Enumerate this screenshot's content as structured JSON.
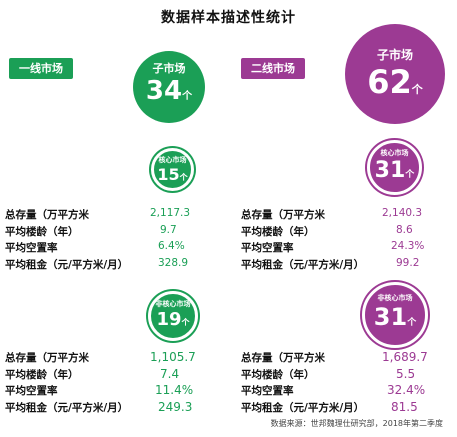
{
  "title": "数据样本描述性统计",
  "colors": {
    "green": "#1b9f56",
    "purple": "#9c3a93"
  },
  "left": {
    "tag": "一线市场",
    "main": {
      "label": "子市场",
      "number": "34",
      "unit": "个"
    },
    "core": {
      "label": "核心市场",
      "number": "15",
      "unit": "个"
    },
    "noncore": {
      "label": "非核心市场",
      "number": "19",
      "unit": "个"
    },
    "core_stats": [
      {
        "label": "总存量（万平方米",
        "value": "2,117.3"
      },
      {
        "label": "平均楼龄（年）",
        "value": "9.7"
      },
      {
        "label": "平均空置率",
        "value": "6.4%"
      },
      {
        "label": "平均租金（元/平方米/月）",
        "value": "328.9"
      }
    ],
    "noncore_stats": [
      {
        "label": "总存量（万平方米",
        "value": "1,105.7"
      },
      {
        "label": "平均楼龄（年）",
        "value": "7.4"
      },
      {
        "label": "平均空置率",
        "value": "11.4%"
      },
      {
        "label": "平均租金（元/平方米/月）",
        "value": "249.3"
      }
    ]
  },
  "right": {
    "tag": "二线市场",
    "main": {
      "label": "子市场",
      "number": "62",
      "unit": "个"
    },
    "core": {
      "label": "核心市场",
      "number": "31",
      "unit": "个"
    },
    "noncore": {
      "label": "非核心市场",
      "number": "31",
      "unit": "个"
    },
    "core_stats": [
      {
        "label": "总存量（万平方米",
        "value": "2,140.3"
      },
      {
        "label": "平均楼龄（年）",
        "value": "8.6"
      },
      {
        "label": "平均空置率",
        "value": "24.3%"
      },
      {
        "label": "平均租金（元/平方米/月）",
        "value": "99.2"
      }
    ],
    "noncore_stats": [
      {
        "label": "总存量（万平方米",
        "value": "1,689.7"
      },
      {
        "label": "平均楼龄（年）",
        "value": "5.5"
      },
      {
        "label": "平均空置率",
        "value": "32.4%"
      },
      {
        "label": "平均租金（元/平方米/月）",
        "value": "81.5"
      }
    ]
  },
  "source": "数据来源：世邦魏理仕研究部，2018年第二季度"
}
